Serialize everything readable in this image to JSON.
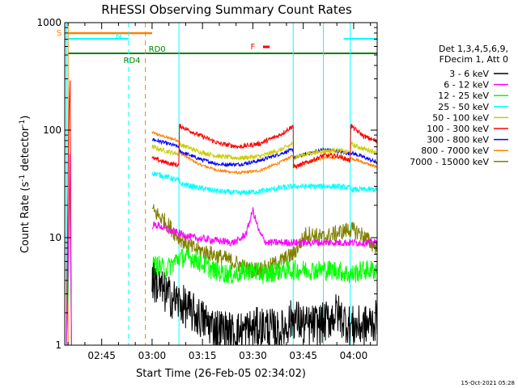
{
  "chart_data": {
    "type": "line",
    "title": "RHESSI Observing Summary Count Rates",
    "xlabel": "Start Time (26-Feb-05 02:34:02)",
    "ylabel_main": "Count Rate (s",
    "ylabel_exp1": "-1",
    "ylabel_mid": " detector",
    "ylabel_exp2": "-1",
    "ylabel_end": ")",
    "yscale": "log",
    "ylim": [
      1,
      1000
    ],
    "xlim_min": [
      0,
      93
    ],
    "x_unit": "minutes since 02:34:02",
    "y_ticks": [
      {
        "value": 1,
        "label": "1"
      },
      {
        "value": 10,
        "label": "10"
      },
      {
        "value": 100,
        "label": "100"
      },
      {
        "value": 1000,
        "label": "1000"
      }
    ],
    "x_ticks": [
      {
        "value": 11,
        "label": "02:45"
      },
      {
        "value": 26,
        "label": "03:00"
      },
      {
        "value": 41,
        "label": "03:15"
      },
      {
        "value": 56,
        "label": "03:30"
      },
      {
        "value": 71,
        "label": "03:45"
      },
      {
        "value": 86,
        "label": "04:00"
      }
    ],
    "legend": {
      "header1": "Det 1,3,4,5,6,9,",
      "header2": "FDecim 1, Att 0",
      "entries": [
        {
          "label": "3 - 6 keV",
          "color": "#000000"
        },
        {
          "label": "6 - 12 keV",
          "color": "#ff00ff"
        },
        {
          "label": "12 - 25 keV",
          "color": "#00ff00"
        },
        {
          "label": "25 - 50 keV",
          "color": "#00ffff"
        },
        {
          "label": "50 - 100 keV",
          "color": "#cccc00"
        },
        {
          "label": "100 - 300 keV",
          "color": "#ff0000"
        },
        {
          "label": "300 - 800 keV",
          "color": "#0000ff"
        },
        {
          "label": "800 - 7000 keV",
          "color": "#ff8000"
        },
        {
          "label": "7000 - 15000 keV",
          "color": "#808000"
        }
      ]
    },
    "flags": [
      {
        "name": "S",
        "color": "#ff8000",
        "segments": [
          [
            1,
            26
          ]
        ]
      },
      {
        "name": "N",
        "color": "#00ffff",
        "segments": [
          [
            1,
            19
          ],
          [
            83,
            93
          ]
        ]
      },
      {
        "name": "RD4",
        "color": "#008000",
        "segments": [
          [
            1,
            26
          ]
        ]
      },
      {
        "name": "RD0",
        "color": "#008000",
        "segments": [
          [
            26,
            34
          ],
          [
            34,
            68
          ],
          [
            68,
            82
          ],
          [
            82,
            93
          ]
        ]
      },
      {
        "name": "F",
        "color": "#ff0000",
        "segments": [
          [
            59,
            61
          ]
        ]
      }
    ],
    "v_lines": [
      {
        "x": 0.5,
        "color": "#00ffff",
        "dashed": false
      },
      {
        "x": 1.0,
        "color": "#ff8000",
        "dashed": false
      },
      {
        "x": 19,
        "color": "#00ffff",
        "dashed": true
      },
      {
        "x": 24,
        "color": "#ff8000",
        "dashed": true
      },
      {
        "x": 34,
        "color": "#00ffff",
        "dashed": false
      },
      {
        "x": 68,
        "color": "#00ffff",
        "dashed": false
      },
      {
        "x": 77,
        "color": "#00ffff",
        "dashed": false
      },
      {
        "x": 85,
        "color": "#00ffff",
        "dashed": false
      },
      {
        "x": 93,
        "color": "#00ffff",
        "dashed": true
      }
    ],
    "series": [
      {
        "name": "800 - 7000 keV",
        "color": "#ff8000",
        "x": [
          26,
          30,
          34,
          34.1,
          40,
          46,
          52,
          58,
          64,
          68,
          68.1,
          72,
          77,
          81,
          85,
          85.1,
          89,
          93
        ],
        "y": [
          95,
          86,
          80,
          62,
          48,
          42,
          40,
          42,
          50,
          58,
          46,
          50,
          55,
          56,
          53,
          55,
          50,
          45
        ]
      },
      {
        "name": "300 - 800 keV",
        "color": "#0000ff",
        "x": [
          26,
          30,
          34,
          34.1,
          40,
          46,
          52,
          58,
          64,
          68,
          68.1,
          72,
          77,
          81,
          85,
          85.1,
          89,
          93
        ],
        "y": [
          82,
          76,
          70,
          64,
          54,
          48,
          48,
          52,
          60,
          66,
          55,
          60,
          66,
          64,
          60,
          62,
          56,
          50
        ]
      },
      {
        "name": "50 - 100 keV",
        "color": "#cccc00",
        "x": [
          26,
          30,
          34,
          34.1,
          40,
          46,
          52,
          58,
          64,
          68,
          68.1,
          72,
          77,
          81,
          85,
          85.1,
          89,
          93
        ],
        "y": [
          70,
          64,
          60,
          74,
          63,
          57,
          55,
          57,
          65,
          75,
          56,
          60,
          64,
          65,
          62,
          74,
          67,
          62
        ]
      },
      {
        "name": "100 - 300 keV",
        "color": "#ff0000",
        "x": [
          26,
          30,
          34,
          34.1,
          40,
          46,
          52,
          58,
          64,
          68,
          68.1,
          72,
          77,
          81,
          85,
          85.1,
          89,
          93
        ],
        "y": [
          55,
          50,
          47,
          110,
          90,
          75,
          70,
          75,
          90,
          110,
          45,
          50,
          58,
          58,
          52,
          110,
          88,
          78
        ]
      },
      {
        "name": "25 - 50 keV",
        "color": "#00ffff",
        "x": [
          26,
          30,
          34,
          34.1,
          40,
          46,
          52,
          58,
          64,
          68,
          68.1,
          72,
          77,
          81,
          85,
          85.1,
          89,
          93
        ],
        "y": [
          40,
          37,
          34,
          32,
          29,
          27,
          26,
          27,
          29,
          30,
          30,
          30,
          30,
          30,
          29,
          28,
          28,
          28
        ]
      },
      {
        "name": "7000 - 15000 keV",
        "color": "#808000",
        "x": [
          26,
          28,
          30,
          34,
          38,
          44,
          50,
          55,
          60,
          64,
          68,
          72,
          77,
          81,
          85,
          88,
          91,
          93
        ],
        "y": [
          18,
          16,
          14,
          10,
          8,
          7,
          6,
          5,
          5.2,
          6,
          7,
          11,
          10,
          11,
          12,
          11,
          9,
          8
        ]
      },
      {
        "name": "6 - 12 keV",
        "color": "#ff00ff",
        "x": [
          26,
          28,
          30,
          34,
          38,
          44,
          50,
          52,
          54,
          55,
          56,
          57,
          58,
          60,
          64,
          68,
          72,
          77,
          81,
          85,
          89,
          93
        ],
        "y": [
          13,
          13,
          12,
          11,
          10,
          9.5,
          9,
          9.5,
          11,
          14,
          18,
          14,
          11,
          9,
          9,
          9,
          9,
          9,
          9,
          9,
          9,
          9
        ]
      },
      {
        "name": "12 - 25 keV",
        "color": "#00ff00",
        "x": [
          26,
          28,
          30,
          34,
          38,
          44,
          50,
          55,
          60,
          64,
          68,
          72,
          77,
          81,
          85,
          89,
          93
        ],
        "y": [
          5.5,
          5.5,
          5,
          6.5,
          6.5,
          5,
          4.5,
          5,
          4.5,
          5,
          5,
          5,
          5,
          5,
          4.5,
          5,
          5
        ]
      },
      {
        "name": "3 - 6 keV",
        "color": "#000000",
        "x": [
          26,
          28,
          30,
          34,
          38,
          44,
          50,
          55,
          60,
          64,
          68,
          72,
          77,
          81,
          85,
          89,
          93
        ],
        "y": [
          4,
          3.5,
          3,
          2.5,
          2,
          1.5,
          1.3,
          1.4,
          1.5,
          1.3,
          1.8,
          1.5,
          1.6,
          2,
          1.5,
          1.5,
          1.7
        ]
      }
    ],
    "early_spikes": [
      {
        "color": "#ff0000",
        "x": [
          0.5,
          1,
          1.3,
          1.6,
          2
        ],
        "y": [
          1,
          40,
          160,
          290,
          1
        ]
      },
      {
        "color": "#00ff00",
        "x": [
          0.5,
          1,
          1.5,
          2
        ],
        "y": [
          1,
          3,
          40,
          1
        ]
      },
      {
        "color": "#ff00ff",
        "x": [
          0.5,
          1,
          1.5,
          2
        ],
        "y": [
          1,
          5,
          60,
          1
        ]
      }
    ],
    "timestamp": "15-Oct-2021 05:28"
  }
}
